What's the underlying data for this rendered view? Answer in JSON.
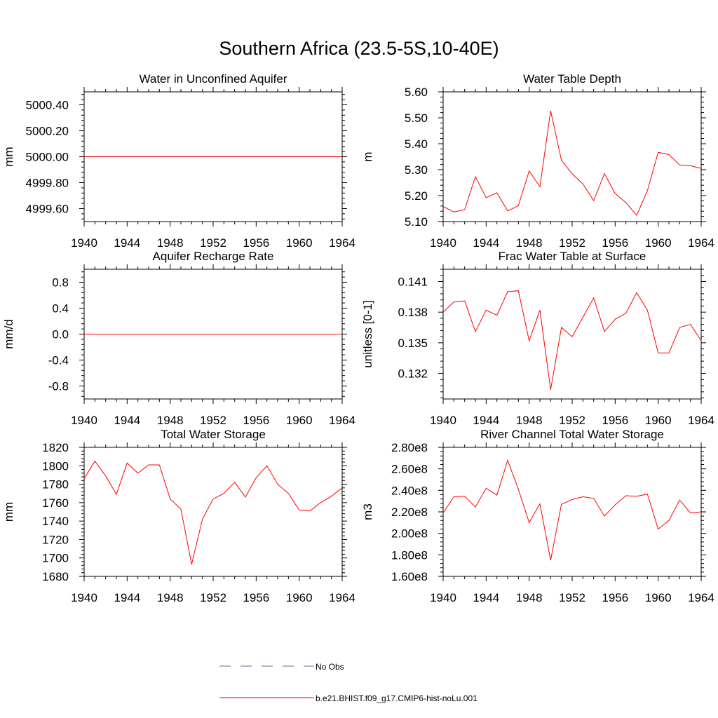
{
  "page": {
    "title": "Southern Africa (23.5-5S,10-40E)"
  },
  "colors": {
    "model_series": "#ff0000",
    "obs_series": "#6a6aaa",
    "axis": "#000000"
  },
  "legend": {
    "entries": [
      {
        "label": "No Obs",
        "style": "dashed",
        "color": "#6a6aaa"
      },
      {
        "label": "b.e21.BHIST.f09_g17.CMIP6-hist-noLu.001",
        "style": "solid",
        "color": "#ff0000"
      }
    ]
  },
  "chart_data": [
    {
      "id": "water-unconfined-aquifer",
      "type": "line",
      "title": "Water in Unconfined Aquifer",
      "xlabel": "",
      "ylabel": "mm",
      "xlim": [
        1940,
        1964
      ],
      "ylim": [
        4999.5,
        5000.5
      ],
      "xticks": [
        1940,
        1944,
        1948,
        1952,
        1956,
        1960,
        1964
      ],
      "yticks": [
        4999.6,
        4999.8,
        5000.0,
        5000.2,
        5000.4
      ],
      "ytick_labels": [
        "4999.60",
        "4999.80",
        "5000.00",
        "5000.20",
        "5000.40"
      ],
      "grid": false,
      "series": [
        {
          "x": [
            1940,
            1964
          ],
          "values": [
            5000.0,
            5000.0
          ]
        }
      ]
    },
    {
      "id": "water-table-depth",
      "type": "line",
      "title": "Water Table Depth",
      "xlabel": "",
      "ylabel": "m",
      "xlim": [
        1940,
        1964
      ],
      "ylim": [
        5.1,
        5.6
      ],
      "xticks": [
        1940,
        1944,
        1948,
        1952,
        1956,
        1960,
        1964
      ],
      "yticks": [
        5.1,
        5.2,
        5.3,
        5.4,
        5.5,
        5.6
      ],
      "ytick_labels": [
        "5.10",
        "5.20",
        "5.30",
        "5.40",
        "5.50",
        "5.60"
      ],
      "grid": false,
      "series": [
        {
          "x": [
            1940,
            1941,
            1942,
            1943,
            1944,
            1945,
            1946,
            1947,
            1948,
            1949,
            1950,
            1951,
            1952,
            1953,
            1954,
            1955,
            1956,
            1957,
            1958,
            1959,
            1960,
            1961,
            1962,
            1963,
            1964
          ],
          "values": [
            5.158,
            5.137,
            5.146,
            5.273,
            5.192,
            5.211,
            5.141,
            5.161,
            5.295,
            5.234,
            5.527,
            5.336,
            5.284,
            5.245,
            5.181,
            5.285,
            5.208,
            5.173,
            5.124,
            5.219,
            5.367,
            5.358,
            5.318,
            5.315,
            5.305
          ]
        }
      ]
    },
    {
      "id": "aquifer-recharge-rate",
      "type": "line",
      "title": "Aquifer Recharge Rate",
      "xlabel": "",
      "ylabel": "mm/d",
      "xlim": [
        1940,
        1964
      ],
      "ylim": [
        -1.0,
        1.0
      ],
      "xticks": [
        1940,
        1944,
        1948,
        1952,
        1956,
        1960,
        1964
      ],
      "yticks": [
        -0.8,
        -0.4,
        0.0,
        0.4,
        0.8
      ],
      "ytick_labels": [
        "-0.8",
        "-0.4",
        "0.0",
        "0.4",
        "0.8"
      ],
      "grid": false,
      "series": [
        {
          "x": [
            1940,
            1964
          ],
          "values": [
            0.0,
            0.0
          ]
        }
      ]
    },
    {
      "id": "frac-water-table-surface",
      "type": "line",
      "title": "Frac Water Table at Surface",
      "xlabel": "",
      "ylabel": "unitless [0-1]",
      "xlim": [
        1940,
        1964
      ],
      "ylim": [
        0.1295,
        0.1422
      ],
      "xticks": [
        1940,
        1944,
        1948,
        1952,
        1956,
        1960,
        1964
      ],
      "yticks": [
        0.132,
        0.135,
        0.138,
        0.141
      ],
      "ytick_labels": [
        "0.132",
        "0.135",
        "0.138",
        "0.141"
      ],
      "grid": false,
      "series": [
        {
          "x": [
            1940,
            1941,
            1942,
            1943,
            1944,
            1945,
            1946,
            1947,
            1948,
            1949,
            1950,
            1951,
            1952,
            1953,
            1954,
            1955,
            1956,
            1957,
            1958,
            1959,
            1960,
            1961,
            1962,
            1963,
            1964
          ],
          "values": [
            0.138,
            0.139,
            0.1391,
            0.1361,
            0.1382,
            0.1377,
            0.14,
            0.1401,
            0.1352,
            0.1382,
            0.1304,
            0.1365,
            0.1356,
            0.1375,
            0.1394,
            0.1361,
            0.1373,
            0.1379,
            0.1399,
            0.1382,
            0.134,
            0.134,
            0.1365,
            0.1368,
            0.1352
          ]
        }
      ]
    },
    {
      "id": "total-water-storage",
      "type": "line",
      "title": "Total Water Storage",
      "xlabel": "",
      "ylabel": "mm",
      "xlim": [
        1940,
        1964
      ],
      "ylim": [
        1680,
        1820
      ],
      "xticks": [
        1940,
        1944,
        1948,
        1952,
        1956,
        1960,
        1964
      ],
      "yticks": [
        1680,
        1700,
        1720,
        1740,
        1760,
        1780,
        1800,
        1820
      ],
      "ytick_labels": [
        "1680",
        "1700",
        "1720",
        "1740",
        "1760",
        "1780",
        "1800",
        "1820"
      ],
      "grid": false,
      "series": [
        {
          "x": [
            1940,
            1941,
            1942,
            1943,
            1944,
            1945,
            1946,
            1947,
            1948,
            1949,
            1950,
            1951,
            1952,
            1953,
            1954,
            1955,
            1956,
            1957,
            1958,
            1959,
            1960,
            1961,
            1962,
            1963,
            1964
          ],
          "values": [
            1786,
            1805,
            1789,
            1769,
            1803,
            1792,
            1801,
            1801,
            1764,
            1753,
            1693,
            1742,
            1764,
            1770,
            1782,
            1766,
            1787,
            1800,
            1780,
            1770,
            1752,
            1751,
            1760,
            1767,
            1776
          ]
        }
      ]
    },
    {
      "id": "river-channel-storage",
      "type": "line",
      "title": "River Channel Total Water Storage",
      "xlabel": "",
      "ylabel": "m3",
      "xlim": [
        1940,
        1964
      ],
      "ylim": [
        160000000,
        280000000
      ],
      "xticks": [
        1940,
        1944,
        1948,
        1952,
        1956,
        1960,
        1964
      ],
      "yticks": [
        160000000,
        180000000,
        200000000,
        220000000,
        240000000,
        260000000,
        280000000
      ],
      "ytick_labels": [
        "1.60e8",
        "1.80e8",
        "2.00e8",
        "2.20e8",
        "2.40e8",
        "2.60e8",
        "2.80e8"
      ],
      "grid": false,
      "series": [
        {
          "x": [
            1940,
            1941,
            1942,
            1943,
            1944,
            1945,
            1946,
            1947,
            1948,
            1949,
            1950,
            1951,
            1952,
            1953,
            1954,
            1955,
            1956,
            1957,
            1958,
            1959,
            1960,
            1961,
            1962,
            1963,
            1964
          ],
          "values": [
            219000000,
            234000000,
            234500000,
            224500000,
            242000000,
            235500000,
            268000000,
            241000000,
            210000000,
            227500000,
            175000000,
            227000000,
            231500000,
            234000000,
            232500000,
            216000000,
            226500000,
            235000000,
            234500000,
            236500000,
            204000000,
            212000000,
            231000000,
            219000000,
            220000000
          ]
        }
      ]
    }
  ]
}
